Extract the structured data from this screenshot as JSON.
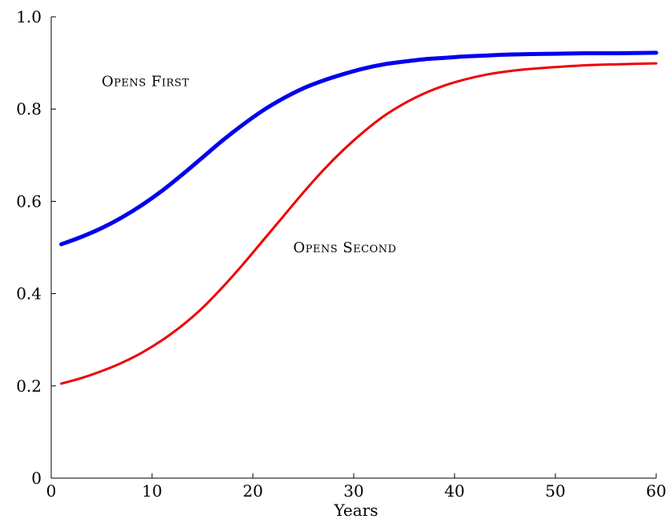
{
  "chart_data": {
    "type": "line",
    "title": "",
    "xlabel": "Years",
    "ylabel": "",
    "xlim": [
      0,
      60
    ],
    "ylim": [
      0,
      1.0
    ],
    "x_ticks": [
      0,
      10,
      20,
      30,
      40,
      50,
      60
    ],
    "x_tick_labels": [
      "0",
      "10",
      "20",
      "30",
      "40",
      "50",
      "60"
    ],
    "y_ticks": [
      0,
      0.2,
      0.4,
      0.6,
      0.8,
      1.0
    ],
    "y_tick_labels": [
      "0",
      "0.2",
      "0.4",
      "0.6",
      "0.8",
      "1.0"
    ],
    "grid": false,
    "legend": "none (series labeled inline)",
    "series": [
      {
        "name": "Opens First",
        "color": "#0000ee",
        "label_anchor": [
          5,
          0.85
        ],
        "x": [
          1,
          3,
          5,
          7,
          9,
          11,
          13,
          15,
          17,
          19,
          21,
          23,
          25,
          27,
          29,
          31,
          33,
          35,
          37,
          39,
          41,
          43,
          45,
          47,
          50,
          53,
          56,
          60
        ],
        "y": [
          0.507,
          0.523,
          0.542,
          0.565,
          0.592,
          0.623,
          0.658,
          0.695,
          0.732,
          0.766,
          0.797,
          0.823,
          0.845,
          0.862,
          0.876,
          0.888,
          0.897,
          0.903,
          0.908,
          0.911,
          0.914,
          0.916,
          0.918,
          0.919,
          0.92,
          0.921,
          0.921,
          0.922
        ]
      },
      {
        "name": "Opens Second",
        "color": "#ee0000",
        "label_anchor": [
          24,
          0.49
        ],
        "x": [
          1,
          3,
          5,
          7,
          9,
          11,
          13,
          15,
          17,
          19,
          21,
          23,
          25,
          27,
          29,
          31,
          33,
          35,
          37,
          39,
          41,
          43,
          45,
          47,
          50,
          53,
          56,
          60
        ],
        "y": [
          0.205,
          0.217,
          0.232,
          0.25,
          0.272,
          0.299,
          0.331,
          0.369,
          0.414,
          0.463,
          0.515,
          0.567,
          0.619,
          0.668,
          0.712,
          0.751,
          0.785,
          0.812,
          0.834,
          0.851,
          0.864,
          0.874,
          0.881,
          0.886,
          0.891,
          0.895,
          0.897,
          0.899
        ]
      }
    ]
  }
}
